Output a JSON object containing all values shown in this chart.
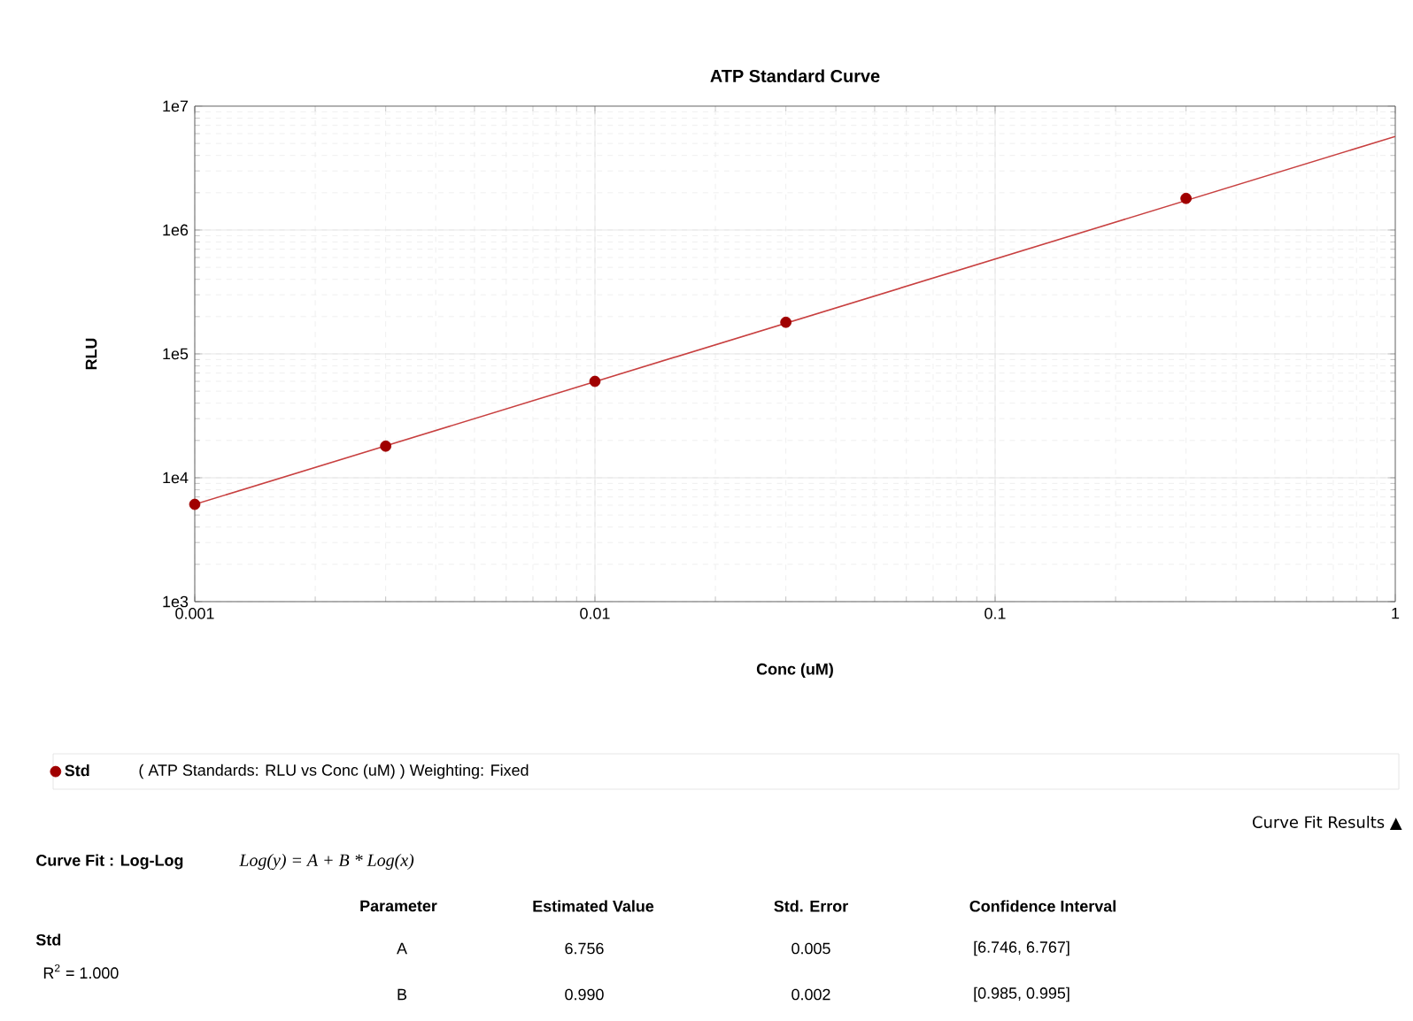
{
  "chart_data": {
    "type": "scatter",
    "title": "ATP Standard Curve",
    "xlabel": "Conc (uM)",
    "ylabel": "RLU",
    "log": "xy",
    "grid": true,
    "legend": "bottom",
    "xlim": [
      0.001,
      1
    ],
    "xticks": [
      0.001,
      0.01,
      0.1,
      1
    ],
    "ylim": [
      1000,
      10000000
    ],
    "yticks": [
      {
        "value": 1000,
        "label": "1e3"
      },
      {
        "value": 10000,
        "label": "1e4"
      },
      {
        "value": 100000,
        "label": "1e5"
      },
      {
        "value": 1000000,
        "label": "1e6"
      },
      {
        "value": 10000000,
        "label": "1e7"
      }
    ],
    "series": [
      {
        "name": "Std",
        "marker": "circle",
        "color": "#a00000",
        "x": [
          0.001,
          0.003,
          0.01,
          0.03,
          0.3
        ],
        "values": [
          6100,
          18000,
          60000,
          180000,
          1800000
        ]
      },
      {
        "type": "line",
        "marker": "none",
        "line_style": "solid",
        "color": "#c84040",
        "x": [
          0.001,
          1
        ],
        "values": [
          6100,
          5700000
        ]
      }
    ],
    "annotations": [
      "( ATP Standards: RLU vs Conc (uM) )  Weighting: Fixed",
      "Curve Fit Results ▲",
      "Curve Fit : Log-Log",
      "Log(y) = A + B * Log(x)",
      "Parameter",
      "Estimated Value",
      "Std. Error",
      "Confidence Interval",
      "Std",
      "R$^{2}$ = 1.000",
      "A",
      "6.756",
      "0.005",
      "[6.746, 6.767]",
      "B",
      "0.990",
      "0.002",
      "[0.985, 0.995]"
    ]
  }
}
